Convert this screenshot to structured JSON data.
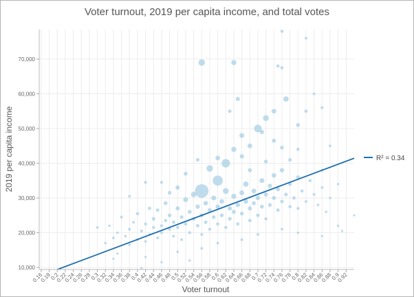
{
  "chart_data": {
    "type": "scatter",
    "title": "Voter turnout, 2019 per capita income, and total votes",
    "xlabel": "Voter turnout",
    "ylabel": "2019 per capita income",
    "xlim": [
      0.155,
      0.94
    ],
    "ylim": [
      9400,
      78500
    ],
    "grid": true,
    "x_ticks": [
      "0.16",
      "0.18",
      "0.2",
      "0.22",
      "0.24",
      "0.26",
      "0.28",
      "0.3",
      "0.32",
      "0.34",
      "0.36",
      "0.38",
      "0.4",
      "0.42",
      "0.44",
      "0.46",
      "0.48",
      "0.5",
      "0.52",
      "0.54",
      "0.56",
      "0.58",
      "0.6",
      "0.62",
      "0.64",
      "0.66",
      "0.68",
      "0.7",
      "0.72",
      "0.74",
      "0.76",
      "0.78",
      "0.8",
      "0.82",
      "0.84",
      "0.86",
      "0.88",
      "0.9",
      "0.92"
    ],
    "y_ticks": [
      "10,000",
      "20,000",
      "30,000",
      "40,000",
      "50,000",
      "60,000",
      "70,000"
    ],
    "point_color": "#a9d0e6",
    "trend_color": "#1f6fb2",
    "trendline": {
      "slope": 43333,
      "intercept": 720,
      "label": "R² = 0.34"
    },
    "legend_placement": "right",
    "size_field": "total votes",
    "points": [
      [
        0.3,
        21500,
        800
      ],
      [
        0.32,
        17000,
        600
      ],
      [
        0.33,
        22000,
        500
      ],
      [
        0.34,
        18500,
        900
      ],
      [
        0.35,
        20000,
        700
      ],
      [
        0.35,
        14000,
        400
      ],
      [
        0.36,
        24500,
        1200
      ],
      [
        0.37,
        19000,
        800
      ],
      [
        0.38,
        21000,
        1500
      ],
      [
        0.38,
        16500,
        600
      ],
      [
        0.39,
        23000,
        1000
      ],
      [
        0.4,
        18000,
        900
      ],
      [
        0.4,
        25500,
        2000
      ],
      [
        0.41,
        20500,
        1100
      ],
      [
        0.42,
        22500,
        1500
      ],
      [
        0.42,
        17500,
        700
      ],
      [
        0.43,
        27000,
        2500
      ],
      [
        0.43,
        19500,
        800
      ],
      [
        0.44,
        21500,
        1600
      ],
      [
        0.44,
        24000,
        3000
      ],
      [
        0.45,
        18500,
        1200
      ],
      [
        0.45,
        26500,
        2800
      ],
      [
        0.46,
        22000,
        1800
      ],
      [
        0.46,
        20000,
        1300
      ],
      [
        0.47,
        23500,
        2200
      ],
      [
        0.47,
        28500,
        4000
      ],
      [
        0.48,
        21000,
        1500
      ],
      [
        0.48,
        25000,
        3500
      ],
      [
        0.49,
        19000,
        1100
      ],
      [
        0.49,
        23000,
        2600
      ],
      [
        0.5,
        27000,
        5000
      ],
      [
        0.5,
        21500,
        1900
      ],
      [
        0.51,
        24500,
        3000
      ],
      [
        0.51,
        18000,
        900
      ],
      [
        0.52,
        29500,
        9000
      ],
      [
        0.52,
        22500,
        2200
      ],
      [
        0.53,
        26000,
        4500
      ],
      [
        0.53,
        20000,
        1500
      ],
      [
        0.54,
        24000,
        3200
      ],
      [
        0.54,
        31000,
        12000
      ],
      [
        0.55,
        22000,
        2500
      ],
      [
        0.55,
        27500,
        6000
      ],
      [
        0.56,
        25000,
        4000
      ],
      [
        0.56,
        19500,
        1200
      ],
      [
        0.57,
        28500,
        7000
      ],
      [
        0.57,
        23000,
        2800
      ],
      [
        0.58,
        26500,
        5000
      ],
      [
        0.58,
        21000,
        1700
      ],
      [
        0.59,
        30000,
        9000
      ],
      [
        0.59,
        24500,
        3300
      ],
      [
        0.6,
        27500,
        6000
      ],
      [
        0.6,
        22500,
        2300
      ],
      [
        0.61,
        29000,
        8000
      ],
      [
        0.61,
        25000,
        4000
      ],
      [
        0.62,
        32000,
        15000
      ],
      [
        0.62,
        21500,
        1800
      ],
      [
        0.63,
        27000,
        5500
      ],
      [
        0.63,
        24000,
        3500
      ],
      [
        0.64,
        30500,
        10000
      ],
      [
        0.64,
        26000,
        4500
      ],
      [
        0.65,
        28000,
        6500
      ],
      [
        0.65,
        22500,
        2200
      ],
      [
        0.66,
        31500,
        9000
      ],
      [
        0.66,
        25500,
        3800
      ],
      [
        0.67,
        29000,
        7000
      ],
      [
        0.67,
        34000,
        12000
      ],
      [
        0.68,
        27000,
        5000
      ],
      [
        0.68,
        23500,
        2500
      ],
      [
        0.69,
        32000,
        8000
      ],
      [
        0.69,
        28500,
        4500
      ],
      [
        0.7,
        30000,
        6000
      ],
      [
        0.7,
        25000,
        3000
      ],
      [
        0.71,
        35000,
        9000
      ],
      [
        0.71,
        27500,
        4000
      ],
      [
        0.72,
        31000,
        5500
      ],
      [
        0.72,
        24000,
        2000
      ],
      [
        0.73,
        33500,
        6000
      ],
      [
        0.73,
        28000,
        3500
      ],
      [
        0.74,
        30000,
        4500
      ],
      [
        0.74,
        36500,
        7000
      ],
      [
        0.75,
        26500,
        2500
      ],
      [
        0.75,
        32500,
        5000
      ],
      [
        0.76,
        29000,
        3000
      ],
      [
        0.76,
        38000,
        6000
      ],
      [
        0.77,
        31000,
        3500
      ],
      [
        0.78,
        27500,
        2000
      ],
      [
        0.78,
        34000,
        4000
      ],
      [
        0.79,
        30000,
        2500
      ],
      [
        0.8,
        36000,
        3500
      ],
      [
        0.8,
        27000,
        1500
      ],
      [
        0.81,
        32000,
        2000
      ],
      [
        0.82,
        29000,
        1200
      ],
      [
        0.83,
        35000,
        1800
      ],
      [
        0.84,
        31000,
        1000
      ],
      [
        0.85,
        28000,
        800
      ],
      [
        0.86,
        33000,
        900
      ],
      [
        0.87,
        26000,
        600
      ],
      [
        0.88,
        30000,
        700
      ],
      [
        0.9,
        22000,
        400
      ],
      [
        0.91,
        20500,
        300
      ],
      [
        0.94,
        25000,
        300
      ],
      [
        0.46,
        34500,
        1500
      ],
      [
        0.5,
        33000,
        6000
      ],
      [
        0.56,
        32000,
        120000
      ],
      [
        0.6,
        35000,
        60000
      ],
      [
        0.58,
        38500,
        20000
      ],
      [
        0.62,
        40000,
        40000
      ],
      [
        0.6,
        41500,
        8000
      ],
      [
        0.64,
        44000,
        10000
      ],
      [
        0.66,
        42000,
        6000
      ],
      [
        0.66,
        48000,
        9000
      ],
      [
        0.68,
        45000,
        8000
      ],
      [
        0.7,
        50000,
        30000
      ],
      [
        0.71,
        49000,
        6000
      ],
      [
        0.72,
        53000,
        15000
      ],
      [
        0.74,
        46500,
        5000
      ],
      [
        0.74,
        55000,
        8000
      ],
      [
        0.76,
        44500,
        4000
      ],
      [
        0.77,
        58500,
        12000
      ],
      [
        0.78,
        41000,
        3000
      ],
      [
        0.8,
        51000,
        4000
      ],
      [
        0.82,
        55000,
        2500
      ],
      [
        0.86,
        56000,
        1500
      ],
      [
        0.84,
        60000,
        1200
      ],
      [
        0.65,
        58500,
        5000
      ],
      [
        0.63,
        55000,
        3000
      ],
      [
        0.56,
        69000,
        20000
      ],
      [
        0.64,
        69000,
        10000
      ],
      [
        0.75,
        68000,
        2000
      ],
      [
        0.76,
        67500,
        2000
      ],
      [
        0.76,
        78000,
        2000
      ],
      [
        0.82,
        76000,
        1000
      ],
      [
        0.55,
        41000,
        3000
      ],
      [
        0.52,
        37000,
        4000
      ],
      [
        0.48,
        31500,
        3000
      ],
      [
        0.42,
        34500,
        1500
      ],
      [
        0.38,
        30500,
        1000
      ],
      [
        0.68,
        38000,
        5000
      ],
      [
        0.72,
        40500,
        4000
      ],
      [
        0.8,
        44000,
        2000
      ],
      [
        0.86,
        38000,
        1000
      ],
      [
        0.9,
        34000,
        600
      ],
      [
        0.88,
        45000,
        800
      ],
      [
        0.34,
        12500,
        300
      ],
      [
        0.42,
        13000,
        400
      ],
      [
        0.5,
        14500,
        600
      ],
      [
        0.56,
        15500,
        800
      ],
      [
        0.6,
        17000,
        1000
      ],
      [
        0.66,
        18000,
        1000
      ],
      [
        0.7,
        19500,
        900
      ],
      [
        0.76,
        21000,
        800
      ],
      [
        0.8,
        20000,
        500
      ],
      [
        0.86,
        19000,
        400
      ],
      [
        0.41,
        9800,
        300
      ],
      [
        0.46,
        11500,
        400
      ],
      [
        0.53,
        12000,
        500
      ]
    ]
  }
}
